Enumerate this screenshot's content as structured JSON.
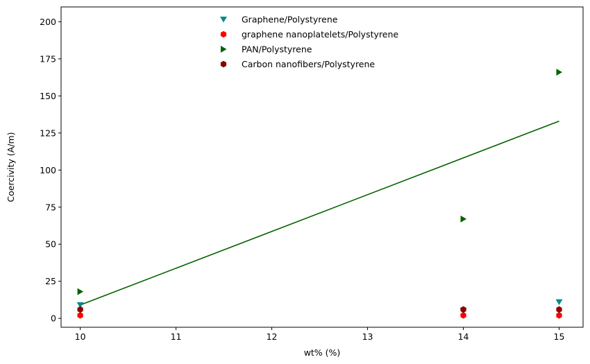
{
  "chart_data": {
    "type": "scatter",
    "title": "",
    "xlabel": "wt% (%)",
    "ylabel": "Coercivity (A/m)",
    "xlim": [
      9.8,
      15.25
    ],
    "ylim": [
      -6,
      210
    ],
    "xticks": [
      10,
      11,
      12,
      13,
      14,
      15
    ],
    "yticks": [
      0,
      25,
      50,
      75,
      100,
      125,
      150,
      175,
      200
    ],
    "grid": false,
    "legend_position": "upper center",
    "series": [
      {
        "name": "Graphene/Polystyrene",
        "marker": "triangle-down",
        "color": "#008B8B",
        "points": [
          [
            10,
            9
          ],
          [
            14,
            5
          ],
          [
            15,
            11
          ]
        ]
      },
      {
        "name": "graphene nanoplatelets/Polystyrene",
        "marker": "hexagon",
        "color": "#FF0000",
        "points": [
          [
            10,
            2
          ],
          [
            14,
            2
          ],
          [
            15,
            2
          ]
        ]
      },
      {
        "name": "PAN/Polystyrene",
        "marker": "triangle-right",
        "color": "#006400",
        "points": [
          [
            10,
            18
          ],
          [
            14,
            67
          ],
          [
            15,
            166
          ]
        ]
      },
      {
        "name": "Carbon nanofibers/Polystyrene",
        "marker": "hexagon",
        "color": "#8B0000",
        "points": [
          [
            10,
            6
          ],
          [
            14,
            6
          ],
          [
            15,
            6
          ]
        ]
      }
    ],
    "fit_line": {
      "color": "#006400",
      "points": [
        [
          10,
          9
        ],
        [
          15,
          133
        ]
      ]
    }
  }
}
